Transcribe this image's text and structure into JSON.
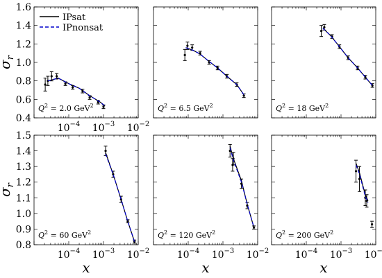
{
  "chart_data": [
    {
      "type": "line",
      "panel_label": "Q^2 = 2.0 GeV^2",
      "q2_text": "2.0",
      "unit": "GeV",
      "ylabel": "σ_r",
      "xlabel": "",
      "xscale": "log",
      "xlim": [
        1e-05,
        0.01
      ],
      "ylim": [
        0.4,
        1.6
      ],
      "yticks": [
        0.4,
        0.6,
        0.8,
        1.0,
        1.2,
        1.4,
        1.6
      ],
      "legend": {
        "placement": "top-left",
        "entries": [
          "IPsat",
          "IPnonsat"
        ]
      },
      "series": [
        {
          "name": "IPsat",
          "style": "solid",
          "color": "#000000",
          "x": [
            2.5e-05,
            5e-05,
            0.0001,
            0.0002,
            0.0004,
            0.0008,
            0.0011
          ],
          "y": [
            0.8,
            0.83,
            0.77,
            0.72,
            0.64,
            0.57,
            0.53
          ]
        },
        {
          "name": "IPnonsat",
          "style": "dashed",
          "color": "#0000cc",
          "x": [
            2.5e-05,
            5e-05,
            0.0001,
            0.0002,
            0.0004,
            0.0008,
            0.0011
          ],
          "y": [
            0.8,
            0.83,
            0.77,
            0.72,
            0.64,
            0.57,
            0.53
          ]
        }
      ],
      "points": [
        {
          "x": 2.1e-05,
          "y": 0.76,
          "err": 0.07
        },
        {
          "x": 2.5e-05,
          "y": 0.8,
          "err": 0.05
        },
        {
          "x": 3.2e-05,
          "y": 0.85,
          "err": 0.05
        },
        {
          "x": 4.5e-05,
          "y": 0.85,
          "err": 0.03
        },
        {
          "x": 8e-05,
          "y": 0.77,
          "err": 0.02
        },
        {
          "x": 0.00013,
          "y": 0.73,
          "err": 0.02
        },
        {
          "x": 0.00025,
          "y": 0.69,
          "err": 0.02
        },
        {
          "x": 0.0004,
          "y": 0.62,
          "err": 0.02
        },
        {
          "x": 0.0007,
          "y": 0.57,
          "err": 0.02
        },
        {
          "x": 0.001,
          "y": 0.52,
          "err": 0.02
        }
      ]
    },
    {
      "type": "line",
      "panel_label": "Q^2 = 6.5 GeV^2",
      "q2_text": "6.5",
      "unit": "GeV",
      "xscale": "log",
      "xlim": [
        1e-05,
        0.01
      ],
      "ylim": [
        0.4,
        1.6
      ],
      "series": [
        {
          "name": "IPsat",
          "style": "solid",
          "color": "#000000",
          "x": [
            8.5e-05,
            0.00014,
            0.00022,
            0.0004,
            0.0007,
            0.0013,
            0.0025,
            0.004
          ],
          "y": [
            1.16,
            1.13,
            1.09,
            1.01,
            0.94,
            0.85,
            0.76,
            0.65
          ]
        },
        {
          "name": "IPnonsat",
          "style": "dashed",
          "color": "#0000cc",
          "x": [
            8.5e-05,
            0.00014,
            0.00022,
            0.0004,
            0.0007,
            0.0013,
            0.0025,
            0.004
          ],
          "y": [
            1.16,
            1.13,
            1.09,
            1.01,
            0.94,
            0.85,
            0.76,
            0.65
          ]
        }
      ],
      "points": [
        {
          "x": 8e-05,
          "y": 1.08,
          "err": 0.06
        },
        {
          "x": 9.5e-05,
          "y": 1.18,
          "err": 0.04
        },
        {
          "x": 0.00013,
          "y": 1.16,
          "err": 0.03
        },
        {
          "x": 0.00022,
          "y": 1.1,
          "err": 0.02
        },
        {
          "x": 0.0004,
          "y": 1.0,
          "err": 0.02
        },
        {
          "x": 0.0007,
          "y": 0.94,
          "err": 0.02
        },
        {
          "x": 0.0013,
          "y": 0.85,
          "err": 0.02
        },
        {
          "x": 0.0025,
          "y": 0.76,
          "err": 0.02
        },
        {
          "x": 0.004,
          "y": 0.64,
          "err": 0.02
        }
      ]
    },
    {
      "type": "line",
      "panel_label": "Q^2 = 18 GeV^2",
      "q2_text": "18",
      "unit": "GeV",
      "xscale": "log",
      "xlim": [
        1e-05,
        0.01
      ],
      "ylim": [
        0.4,
        1.6
      ],
      "series": [
        {
          "name": "IPsat",
          "style": "solid",
          "color": "#000000",
          "x": [
            0.0003,
            0.0005,
            0.0009,
            0.0016,
            0.003,
            0.005,
            0.008
          ],
          "y": [
            1.37,
            1.29,
            1.17,
            1.05,
            0.94,
            0.84,
            0.75
          ]
        },
        {
          "name": "IPnonsat",
          "style": "dashed",
          "color": "#0000cc",
          "x": [
            0.0003,
            0.0005,
            0.0009,
            0.0016,
            0.003,
            0.005,
            0.008
          ],
          "y": [
            1.37,
            1.29,
            1.17,
            1.05,
            0.94,
            0.84,
            0.75
          ]
        }
      ],
      "points": [
        {
          "x": 0.00027,
          "y": 1.34,
          "err": 0.06
        },
        {
          "x": 0.00033,
          "y": 1.38,
          "err": 0.03
        },
        {
          "x": 0.00055,
          "y": 1.28,
          "err": 0.02
        },
        {
          "x": 0.0009,
          "y": 1.17,
          "err": 0.02
        },
        {
          "x": 0.0016,
          "y": 1.05,
          "err": 0.02
        },
        {
          "x": 0.003,
          "y": 0.94,
          "err": 0.02
        },
        {
          "x": 0.005,
          "y": 0.84,
          "err": 0.02
        },
        {
          "x": 0.008,
          "y": 0.75,
          "err": 0.02
        }
      ]
    },
    {
      "type": "line",
      "panel_label": "Q^2 = 60 GeV^2",
      "q2_text": "60",
      "unit": "GeV",
      "ylabel": "σ_r",
      "xlabel": "x",
      "xscale": "log",
      "xlim": [
        1e-05,
        0.01
      ],
      "ylim": [
        0.8,
        1.5
      ],
      "yticks": [
        0.8,
        0.9,
        1.0,
        1.1,
        1.2,
        1.3,
        1.4,
        1.5
      ],
      "series": [
        {
          "name": "IPsat",
          "style": "solid",
          "color": "#000000",
          "x": [
            0.00115,
            0.0019,
            0.0032,
            0.005,
            0.0078
          ],
          "y": [
            1.39,
            1.25,
            1.09,
            0.95,
            0.82
          ]
        },
        {
          "name": "IPnonsat",
          "style": "dashed",
          "color": "#0000cc",
          "x": [
            0.00115,
            0.0019,
            0.0032,
            0.005,
            0.0078
          ],
          "y": [
            1.38,
            1.25,
            1.09,
            0.95,
            0.82
          ]
        }
      ],
      "points": [
        {
          "x": 0.00115,
          "y": 1.4,
          "err": 0.03
        },
        {
          "x": 0.0019,
          "y": 1.25,
          "err": 0.02
        },
        {
          "x": 0.0032,
          "y": 1.09,
          "err": 0.02
        },
        {
          "x": 0.005,
          "y": 0.95,
          "err": 0.01
        },
        {
          "x": 0.0078,
          "y": 0.82,
          "err": 0.01
        }
      ]
    },
    {
      "type": "line",
      "panel_label": "Q^2 = 120 GeV^2",
      "q2_text": "120",
      "unit": "GeV",
      "xlabel": "x",
      "xscale": "log",
      "xlim": [
        1e-05,
        0.01
      ],
      "ylim": [
        0.8,
        1.5
      ],
      "series": [
        {
          "name": "IPsat",
          "style": "solid",
          "color": "#000000",
          "x": [
            0.0016,
            0.002,
            0.0034,
            0.005,
            0.0078
          ],
          "y": [
            1.43,
            1.35,
            1.21,
            1.06,
            0.91
          ]
        },
        {
          "name": "IPnonsat",
          "style": "dashed",
          "color": "#0000cc",
          "x": [
            0.0016,
            0.002,
            0.0034,
            0.005,
            0.0078
          ],
          "y": [
            1.42,
            1.34,
            1.2,
            1.06,
            0.91
          ]
        }
      ],
      "points": [
        {
          "x": 0.0016,
          "y": 1.4,
          "err": 0.04
        },
        {
          "x": 0.0019,
          "y": 1.31,
          "err": 0.04
        },
        {
          "x": 0.002,
          "y": 1.35,
          "err": 0.04
        },
        {
          "x": 0.0034,
          "y": 1.19,
          "err": 0.03
        },
        {
          "x": 0.005,
          "y": 1.05,
          "err": 0.02
        },
        {
          "x": 0.0078,
          "y": 0.91,
          "err": 0.01
        }
      ]
    },
    {
      "type": "line",
      "panel_label": "Q^2 = 200 GeV^2",
      "q2_text": "200",
      "unit": "GeV",
      "xlabel": "x",
      "xscale": "log",
      "xlim": [
        1e-05,
        0.01
      ],
      "ylim": [
        0.8,
        1.5
      ],
      "series": [
        {
          "name": "IPsat",
          "style": "solid",
          "color": "#000000",
          "x": [
            0.0027,
            0.0034,
            0.005,
            0.006
          ],
          "y": [
            1.32,
            1.26,
            1.12,
            1.08
          ]
        },
        {
          "name": "IPnonsat",
          "style": "dashed",
          "color": "#0000cc",
          "x": [
            0.0027,
            0.0034,
            0.005,
            0.006
          ],
          "y": [
            1.31,
            1.25,
            1.11,
            1.07
          ]
        }
      ],
      "points": [
        {
          "x": 0.0027,
          "y": 1.27,
          "err": 0.07
        },
        {
          "x": 0.0034,
          "y": 1.22,
          "err": 0.08
        },
        {
          "x": 0.005,
          "y": 1.1,
          "err": 0.05
        },
        {
          "x": 0.0055,
          "y": 1.08,
          "err": 0.04
        },
        {
          "x": 0.0078,
          "y": 0.93,
          "err": 0.02
        }
      ]
    }
  ]
}
